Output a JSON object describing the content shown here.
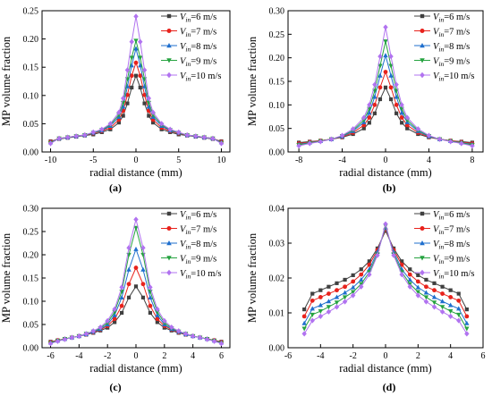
{
  "colors": [
    "#404040",
    "#e8221c",
    "#1f6fce",
    "#27a341",
    "#b173f0"
  ],
  "marker_shapes": [
    "square",
    "circle",
    "triangle-up",
    "triangle-down",
    "diamond"
  ],
  "legend_symbol": "V",
  "legend_subscript": "in",
  "chart_data": [
    {
      "type": "line",
      "label": "(a)",
      "xlabel": "radial distance (mm)",
      "ylabel": "MP volume fraction",
      "xlim": [
        -11,
        11
      ],
      "ylim": [
        0.0,
        0.25
      ],
      "xticks": [
        -10,
        -5,
        0,
        5,
        10
      ],
      "yticks": [
        0.0,
        0.05,
        0.1,
        0.15,
        0.2,
        0.25
      ],
      "legend_position": "top-right",
      "x": [
        -10,
        -9,
        -8,
        -7,
        -6,
        -5,
        -4,
        -3,
        -2,
        -1.5,
        -1,
        -0.5,
        0,
        0.5,
        1,
        1.5,
        2,
        3,
        4,
        5,
        6,
        7,
        8,
        9,
        10
      ],
      "series": [
        {
          "name": "=6 m/s",
          "values": [
            0.019,
            0.023,
            0.025,
            0.027,
            0.029,
            0.031,
            0.035,
            0.04,
            0.052,
            0.064,
            0.086,
            0.114,
            0.135,
            0.114,
            0.086,
            0.064,
            0.052,
            0.04,
            0.035,
            0.031,
            0.029,
            0.027,
            0.025,
            0.023,
            0.019
          ]
        },
        {
          "name": "=7 m/s",
          "values": [
            0.018,
            0.024,
            0.026,
            0.028,
            0.03,
            0.033,
            0.037,
            0.043,
            0.057,
            0.073,
            0.101,
            0.135,
            0.158,
            0.135,
            0.101,
            0.073,
            0.057,
            0.043,
            0.037,
            0.033,
            0.03,
            0.028,
            0.026,
            0.024,
            0.018
          ]
        },
        {
          "name": "=8 m/s",
          "values": [
            0.017,
            0.024,
            0.026,
            0.028,
            0.03,
            0.034,
            0.038,
            0.046,
            0.062,
            0.08,
            0.116,
            0.153,
            0.183,
            0.153,
            0.116,
            0.08,
            0.062,
            0.046,
            0.038,
            0.034,
            0.03,
            0.028,
            0.026,
            0.024,
            0.017
          ]
        },
        {
          "name": "=9 m/s",
          "values": [
            0.016,
            0.024,
            0.026,
            0.028,
            0.03,
            0.034,
            0.039,
            0.048,
            0.066,
            0.087,
            0.129,
            0.167,
            0.197,
            0.167,
            0.129,
            0.087,
            0.066,
            0.048,
            0.039,
            0.034,
            0.03,
            0.028,
            0.026,
            0.024,
            0.016
          ]
        },
        {
          "name": "=10 m/s",
          "values": [
            0.015,
            0.024,
            0.026,
            0.028,
            0.03,
            0.035,
            0.04,
            0.05,
            0.07,
            0.095,
            0.145,
            0.195,
            0.24,
            0.195,
            0.145,
            0.095,
            0.07,
            0.05,
            0.04,
            0.035,
            0.03,
            0.028,
            0.026,
            0.024,
            0.015
          ]
        }
      ]
    },
    {
      "type": "line",
      "label": "(b)",
      "xlabel": "radial distance (mm)",
      "ylabel": "MP volume fraction",
      "xlim": [
        -9,
        9
      ],
      "ylim": [
        0.0,
        0.3
      ],
      "xticks": [
        -8,
        -4,
        0,
        4,
        8
      ],
      "yticks": [
        0.0,
        0.05,
        0.1,
        0.15,
        0.2,
        0.25,
        0.3
      ],
      "legend_position": "top-right",
      "x": [
        -8,
        -7,
        -6,
        -5,
        -4,
        -3,
        -2,
        -1.5,
        -1,
        -0.5,
        0,
        0.5,
        1,
        1.5,
        2,
        3,
        4,
        5,
        6,
        7,
        8
      ],
      "series": [
        {
          "name": "=6 m/s",
          "values": [
            0.02,
            0.022,
            0.024,
            0.027,
            0.031,
            0.038,
            0.05,
            0.062,
            0.082,
            0.112,
            0.137,
            0.112,
            0.082,
            0.062,
            0.05,
            0.038,
            0.031,
            0.027,
            0.024,
            0.022,
            0.02
          ]
        },
        {
          "name": "=7 m/s",
          "values": [
            0.018,
            0.021,
            0.024,
            0.027,
            0.032,
            0.041,
            0.057,
            0.073,
            0.1,
            0.137,
            0.17,
            0.137,
            0.1,
            0.073,
            0.057,
            0.041,
            0.032,
            0.027,
            0.024,
            0.021,
            0.018
          ]
        },
        {
          "name": "=8 m/s",
          "values": [
            0.016,
            0.02,
            0.023,
            0.027,
            0.033,
            0.044,
            0.063,
            0.083,
            0.117,
            0.162,
            0.205,
            0.162,
            0.117,
            0.083,
            0.063,
            0.044,
            0.033,
            0.027,
            0.023,
            0.02,
            0.016
          ]
        },
        {
          "name": "=9 m/s",
          "values": [
            0.015,
            0.019,
            0.023,
            0.027,
            0.034,
            0.046,
            0.068,
            0.092,
            0.13,
            0.183,
            0.235,
            0.183,
            0.13,
            0.092,
            0.068,
            0.046,
            0.034,
            0.027,
            0.023,
            0.019,
            0.015
          ]
        },
        {
          "name": "=10 m/s",
          "values": [
            0.013,
            0.018,
            0.022,
            0.027,
            0.035,
            0.049,
            0.073,
            0.1,
            0.143,
            0.203,
            0.265,
            0.203,
            0.143,
            0.1,
            0.073,
            0.049,
            0.035,
            0.027,
            0.022,
            0.018,
            0.013
          ]
        }
      ]
    },
    {
      "type": "line",
      "label": "(c)",
      "xlabel": "radial distance (mm)",
      "ylabel": "MP volume fraction",
      "xlim": [
        -6.6,
        6.6
      ],
      "ylim": [
        0.0,
        0.3
      ],
      "xticks": [
        -6,
        -4,
        -2,
        0,
        2,
        4,
        6
      ],
      "yticks": [
        0.0,
        0.05,
        0.1,
        0.15,
        0.2,
        0.25,
        0.3
      ],
      "legend_position": "top-right",
      "x": [
        -6,
        -5.5,
        -5,
        -4.5,
        -4,
        -3.5,
        -3,
        -2.5,
        -2,
        -1.5,
        -1,
        -0.5,
        0,
        0.5,
        1,
        1.5,
        2,
        2.5,
        3,
        3.5,
        4,
        4.5,
        5,
        5.5,
        6
      ],
      "series": [
        {
          "name": "=6 m/s",
          "values": [
            0.013,
            0.016,
            0.019,
            0.022,
            0.025,
            0.028,
            0.032,
            0.037,
            0.043,
            0.055,
            0.075,
            0.108,
            0.132,
            0.108,
            0.075,
            0.055,
            0.043,
            0.037,
            0.032,
            0.028,
            0.025,
            0.022,
            0.019,
            0.016,
            0.013
          ]
        },
        {
          "name": "=7 m/s",
          "values": [
            0.012,
            0.016,
            0.019,
            0.022,
            0.025,
            0.029,
            0.033,
            0.039,
            0.047,
            0.062,
            0.09,
            0.137,
            0.172,
            0.137,
            0.09,
            0.062,
            0.047,
            0.039,
            0.033,
            0.029,
            0.025,
            0.022,
            0.019,
            0.016,
            0.012
          ]
        },
        {
          "name": "=8 m/s",
          "values": [
            0.011,
            0.015,
            0.019,
            0.022,
            0.025,
            0.029,
            0.034,
            0.04,
            0.05,
            0.07,
            0.108,
            0.168,
            0.212,
            0.168,
            0.108,
            0.07,
            0.05,
            0.04,
            0.034,
            0.029,
            0.025,
            0.022,
            0.019,
            0.015,
            0.011
          ]
        },
        {
          "name": "=9 m/s",
          "values": [
            0.01,
            0.015,
            0.019,
            0.022,
            0.025,
            0.03,
            0.035,
            0.042,
            0.054,
            0.077,
            0.121,
            0.2,
            0.258,
            0.2,
            0.121,
            0.077,
            0.054,
            0.042,
            0.035,
            0.03,
            0.025,
            0.022,
            0.019,
            0.015,
            0.01
          ]
        },
        {
          "name": "=10 m/s",
          "values": [
            0.009,
            0.014,
            0.018,
            0.022,
            0.025,
            0.03,
            0.036,
            0.044,
            0.058,
            0.083,
            0.13,
            0.215,
            0.276,
            0.215,
            0.13,
            0.083,
            0.058,
            0.044,
            0.036,
            0.03,
            0.025,
            0.022,
            0.018,
            0.014,
            0.009
          ]
        }
      ]
    },
    {
      "type": "line",
      "label": "(d)",
      "xlabel": "radial distance (mm)",
      "ylabel": "MP volume fraction",
      "xlim": [
        -6,
        6
      ],
      "ylim": [
        0.0,
        0.04
      ],
      "xticks": [
        -6,
        -4,
        -2,
        0,
        2,
        4,
        6
      ],
      "yticks": [
        0.0,
        0.01,
        0.02,
        0.03,
        0.04
      ],
      "legend_position": "top-right",
      "x": [
        -5,
        -4.5,
        -4,
        -3.5,
        -3,
        -2.5,
        -2,
        -1.5,
        -1,
        -0.5,
        0,
        0.5,
        1,
        1.5,
        2,
        2.5,
        3,
        3.5,
        4,
        4.5,
        5
      ],
      "series": [
        {
          "name": "=6 m/s",
          "values": [
            0.011,
            0.0155,
            0.0165,
            0.0175,
            0.0185,
            0.0195,
            0.0208,
            0.0225,
            0.0248,
            0.0285,
            0.0335,
            0.0285,
            0.0248,
            0.0225,
            0.0208,
            0.0195,
            0.0185,
            0.0175,
            0.0165,
            0.0155,
            0.011
          ]
        },
        {
          "name": "=7 m/s",
          "values": [
            0.009,
            0.0135,
            0.0145,
            0.0155,
            0.0165,
            0.0175,
            0.019,
            0.021,
            0.0238,
            0.028,
            0.034,
            0.028,
            0.0238,
            0.021,
            0.019,
            0.0175,
            0.0165,
            0.0155,
            0.0145,
            0.0135,
            0.009
          ]
        },
        {
          "name": "=8 m/s",
          "values": [
            0.007,
            0.0112,
            0.0122,
            0.0133,
            0.0145,
            0.0158,
            0.0173,
            0.0195,
            0.0225,
            0.0275,
            0.0345,
            0.0275,
            0.0225,
            0.0195,
            0.0173,
            0.0158,
            0.0145,
            0.0133,
            0.0122,
            0.0112,
            0.007
          ]
        },
        {
          "name": "=9 m/s",
          "values": [
            0.0055,
            0.0095,
            0.0105,
            0.0117,
            0.013,
            0.0145,
            0.016,
            0.0183,
            0.0217,
            0.0268,
            0.035,
            0.0268,
            0.0217,
            0.0183,
            0.016,
            0.0145,
            0.013,
            0.0117,
            0.0105,
            0.0095,
            0.0055
          ]
        },
        {
          "name": "=10 m/s",
          "values": [
            0.004,
            0.0078,
            0.009,
            0.0103,
            0.0117,
            0.0132,
            0.015,
            0.0175,
            0.021,
            0.0265,
            0.0355,
            0.0265,
            0.021,
            0.0175,
            0.015,
            0.0132,
            0.0117,
            0.0103,
            0.009,
            0.0078,
            0.004
          ]
        }
      ]
    }
  ]
}
